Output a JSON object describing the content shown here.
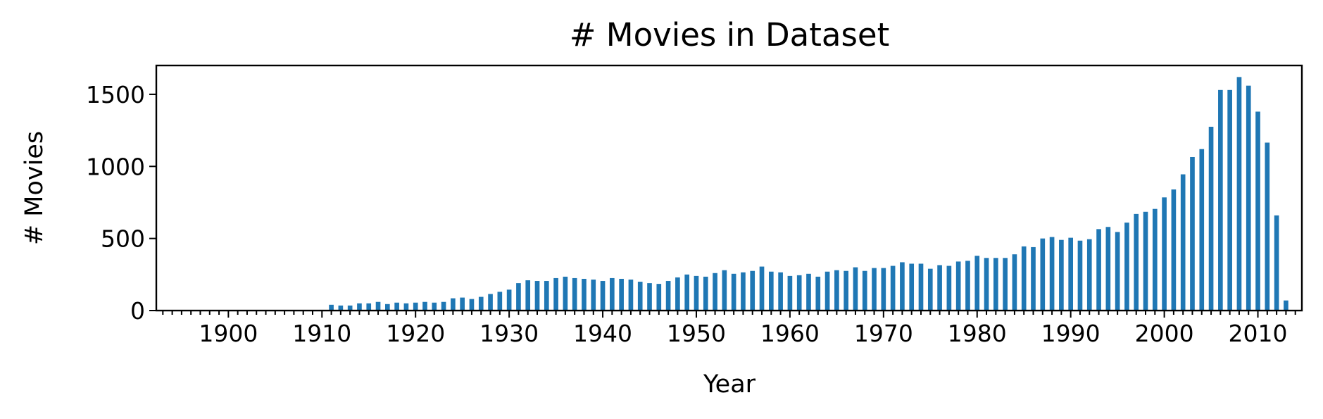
{
  "chart_data": {
    "type": "bar",
    "title": "# Movies in Dataset",
    "xlabel": "Year",
    "ylabel": "# Movies",
    "color": "#1f77b4",
    "xlim": [
      1892.3,
      2014.7
    ],
    "ylim": [
      0,
      1700
    ],
    "grid": false,
    "legend": "none",
    "xticks": [
      1900,
      1910,
      1920,
      1930,
      1940,
      1950,
      1960,
      1970,
      1980,
      1990,
      2000,
      2010
    ],
    "xtick_labels": [
      "1900",
      "1910",
      "1920",
      "1930",
      "1940",
      "1950",
      "1960",
      "1970",
      "1980",
      "1990",
      "2000",
      "2010"
    ],
    "yticks": [
      0,
      500,
      1000,
      1500
    ],
    "ytick_labels": [
      "0",
      "500",
      "1000",
      "1500"
    ],
    "x": [
      1894,
      1895,
      1896,
      1897,
      1898,
      1899,
      1900,
      1901,
      1902,
      1903,
      1904,
      1905,
      1906,
      1907,
      1908,
      1909,
      1910,
      1911,
      1912,
      1913,
      1914,
      1915,
      1916,
      1917,
      1918,
      1919,
      1920,
      1921,
      1922,
      1923,
      1924,
      1925,
      1926,
      1927,
      1928,
      1929,
      1930,
      1931,
      1932,
      1933,
      1934,
      1935,
      1936,
      1937,
      1938,
      1939,
      1940,
      1941,
      1942,
      1943,
      1944,
      1945,
      1946,
      1947,
      1948,
      1949,
      1950,
      1951,
      1952,
      1953,
      1954,
      1955,
      1956,
      1957,
      1958,
      1959,
      1960,
      1961,
      1962,
      1963,
      1964,
      1965,
      1966,
      1967,
      1968,
      1969,
      1970,
      1971,
      1972,
      1973,
      1974,
      1975,
      1976,
      1977,
      1978,
      1979,
      1980,
      1981,
      1982,
      1983,
      1984,
      1985,
      1986,
      1987,
      1988,
      1989,
      1990,
      1991,
      1992,
      1993,
      1994,
      1995,
      1996,
      1997,
      1998,
      1999,
      2000,
      2001,
      2002,
      2003,
      2004,
      2005,
      2006,
      2007,
      2008,
      2009,
      2010,
      2011,
      2012,
      2013
    ],
    "values": [
      2,
      3,
      2,
      2,
      2,
      2,
      2,
      2,
      2,
      2,
      2,
      2,
      2,
      2,
      2,
      2,
      5,
      40,
      35,
      35,
      50,
      50,
      60,
      45,
      55,
      50,
      55,
      60,
      55,
      60,
      85,
      90,
      80,
      95,
      115,
      130,
      145,
      190,
      210,
      205,
      205,
      225,
      235,
      225,
      220,
      215,
      205,
      225,
      220,
      215,
      200,
      190,
      185,
      205,
      230,
      250,
      240,
      235,
      260,
      280,
      255,
      265,
      275,
      305,
      270,
      265,
      240,
      245,
      255,
      235,
      270,
      280,
      275,
      300,
      275,
      295,
      295,
      310,
      335,
      325,
      325,
      290,
      315,
      310,
      340,
      345,
      380,
      365,
      365,
      365,
      390,
      445,
      440,
      500,
      510,
      490,
      505,
      485,
      495,
      565,
      580,
      545,
      610,
      670,
      685,
      705,
      785,
      840,
      945,
      1065,
      1120,
      1275,
      1530,
      1530,
      1620,
      1560,
      1380,
      1165,
      660,
      70
    ]
  }
}
